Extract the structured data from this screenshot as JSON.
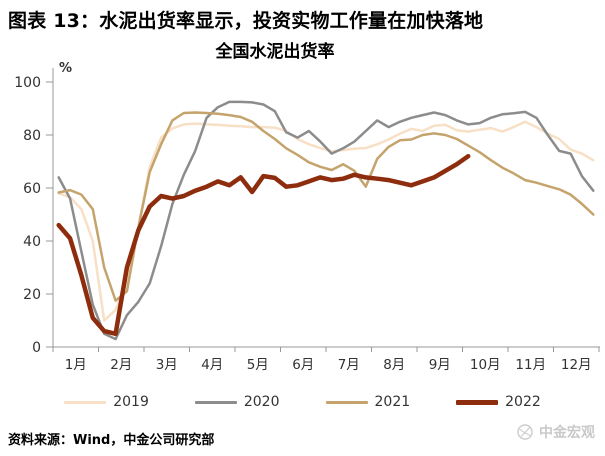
{
  "header": {
    "title": "图表 13：水泥出货率显示，投资实物工作量在加快落地"
  },
  "chart_data": {
    "type": "line",
    "title": "全国水泥出货率",
    "unit_label": "%",
    "ylim": [
      0,
      100
    ],
    "yticks": [
      0,
      20,
      40,
      60,
      80,
      100
    ],
    "x_tick_labels": [
      "1月",
      "2月",
      "3月",
      "4月",
      "5月",
      "6月",
      "7月",
      "8月",
      "9月",
      "10月",
      "11月",
      "12月"
    ],
    "points_per_month": 4,
    "grid": false,
    "legend_position": "bottom",
    "series": [
      {
        "name": "2019",
        "color": "#F8E0C6",
        "width": 2.5,
        "values": [
          58,
          56.5,
          52,
          40,
          10,
          14,
          25,
          45,
          68,
          79,
          82.5,
          84,
          84.3,
          84,
          83.8,
          83.5,
          83.3,
          83,
          83,
          82.8,
          81.5,
          78.5,
          76.5,
          75.1,
          73.8,
          74.3,
          74.8,
          75.1,
          76.5,
          78.3,
          80.5,
          82.3,
          81.5,
          83.5,
          83.8,
          81.8,
          81.3,
          82,
          82.6,
          81.3,
          83,
          85,
          83,
          80.5,
          78.5,
          74.5,
          73,
          70.5
        ]
      },
      {
        "name": "2020",
        "color": "#8C8C8C",
        "width": 2.5,
        "values": [
          64,
          56,
          36,
          16,
          5,
          3,
          12,
          17,
          24,
          38,
          54,
          65,
          74,
          86.5,
          90.5,
          92.5,
          92.5,
          92.3,
          91.5,
          89,
          81,
          79,
          81.5,
          77.5,
          73,
          75,
          77.5,
          81.5,
          85.5,
          83,
          85,
          86.5,
          87.5,
          88.5,
          87.5,
          85.5,
          84,
          84.5,
          86.5,
          87.8,
          88.2,
          88.7,
          86.5,
          80,
          74,
          73,
          64.5,
          59
        ]
      },
      {
        "name": "2021",
        "color": "#C5A36C",
        "width": 2.5,
        "values": [
          58.3,
          59.2,
          57.5,
          52,
          30,
          17.5,
          21,
          45,
          66,
          76.5,
          85.5,
          88.3,
          88.5,
          88.3,
          88,
          87.5,
          86.8,
          85,
          81.5,
          78.5,
          75,
          72.5,
          69.7,
          68,
          66.8,
          69,
          66.5,
          60.5,
          71,
          75.5,
          78,
          78.3,
          80,
          80.6,
          80,
          78.5,
          76,
          73.5,
          70.5,
          67.7,
          65.5,
          63,
          62,
          60.7,
          59.5,
          57.5,
          54,
          50
        ]
      },
      {
        "name": "2022",
        "color": "#8E2D0E",
        "width": 4.5,
        "values": [
          46,
          41,
          27,
          11,
          6,
          5,
          30,
          44,
          53,
          57,
          56,
          57,
          59,
          60.5,
          62.5,
          61,
          64,
          58.5,
          64.5,
          63.8,
          60.5,
          61,
          62.5,
          64,
          63,
          63.5,
          65,
          64,
          63.5,
          63,
          62,
          61,
          62.5,
          64,
          66.5,
          69,
          72,
          null,
          null,
          null,
          null,
          null,
          null,
          null,
          null,
          null,
          null,
          null
        ]
      }
    ]
  },
  "footer": {
    "source": "资料来源：Wind，中金公司研究部"
  },
  "watermark": {
    "label": "中金宏观",
    "icon": "globe-swirl-icon"
  }
}
